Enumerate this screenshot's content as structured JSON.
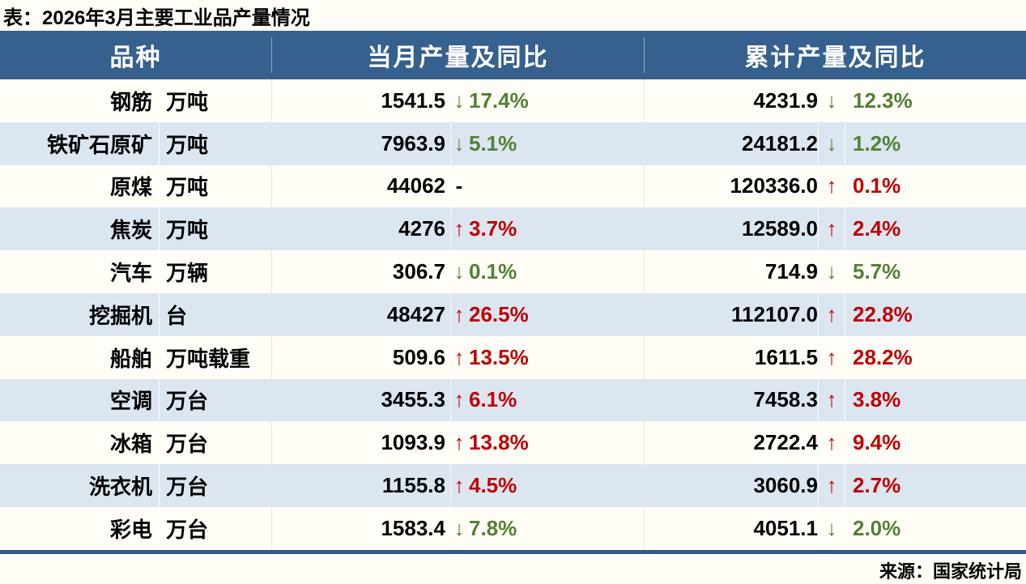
{
  "page_title": "表：2026年3月主要工业品产量情况",
  "source_note": "来源：国家统计局",
  "colors": {
    "page_bg": "#fffdf6",
    "header_bg": "#36618e",
    "alt_row_bg": "#dce6f1",
    "increase": "#c00000",
    "decrease": "#538135",
    "footer_bar": "#315a88"
  },
  "icons": {
    "up-arrow-icon": "↑",
    "down-arrow-icon": "↓",
    "flat-icon": "-"
  },
  "chart_data": {
    "type": "table",
    "title": "表：2026年3月主要工业品产量情况",
    "columns": [
      "品种",
      "当月产量及同比",
      "累计产量及同比"
    ],
    "rows": [
      {
        "name": "钢筋",
        "unit": "万吨",
        "month_value": "1541.5",
        "month_dir": "down",
        "month_change": "17.4%",
        "cum_value": "4231.9",
        "cum_dir": "down",
        "cum_change": "12.3%"
      },
      {
        "name": "铁矿石原矿",
        "unit": "万吨",
        "month_value": "7963.9",
        "month_dir": "down",
        "month_change": "5.1%",
        "cum_value": "24181.2",
        "cum_dir": "down",
        "cum_change": "1.2%"
      },
      {
        "name": "原煤",
        "unit": "万吨",
        "month_value": "44062",
        "month_dir": "flat",
        "month_change": "",
        "cum_value": "120336.0",
        "cum_dir": "up",
        "cum_change": "0.1%"
      },
      {
        "name": "焦炭",
        "unit": "万吨",
        "month_value": "4276",
        "month_dir": "up",
        "month_change": "3.7%",
        "cum_value": "12589.0",
        "cum_dir": "up",
        "cum_change": "2.4%"
      },
      {
        "name": "汽车",
        "unit": "万辆",
        "month_value": "306.7",
        "month_dir": "down",
        "month_change": "0.1%",
        "cum_value": "714.9",
        "cum_dir": "down",
        "cum_change": "5.7%"
      },
      {
        "name": "挖掘机",
        "unit": "台",
        "month_value": "48427",
        "month_dir": "up",
        "month_change": "26.5%",
        "cum_value": "112107.0",
        "cum_dir": "up",
        "cum_change": "22.8%"
      },
      {
        "name": "船舶",
        "unit": "万吨载重",
        "month_value": "509.6",
        "month_dir": "up",
        "month_change": "13.5%",
        "cum_value": "1611.5",
        "cum_dir": "up",
        "cum_change": "28.2%"
      },
      {
        "name": "空调",
        "unit": "万台",
        "month_value": "3455.3",
        "month_dir": "up",
        "month_change": "6.1%",
        "cum_value": "7458.3",
        "cum_dir": "up",
        "cum_change": "3.8%"
      },
      {
        "name": "冰箱",
        "unit": "万台",
        "month_value": "1093.9",
        "month_dir": "up",
        "month_change": "13.8%",
        "cum_value": "2722.4",
        "cum_dir": "up",
        "cum_change": "9.4%"
      },
      {
        "name": "洗衣机",
        "unit": "万台",
        "month_value": "1155.8",
        "month_dir": "up",
        "month_change": "4.5%",
        "cum_value": "3060.9",
        "cum_dir": "up",
        "cum_change": "2.7%"
      },
      {
        "name": "彩电",
        "unit": "万台",
        "month_value": "1583.4",
        "month_dir": "down",
        "month_change": "7.8%",
        "cum_value": "4051.1",
        "cum_dir": "down",
        "cum_change": "2.0%"
      }
    ]
  }
}
